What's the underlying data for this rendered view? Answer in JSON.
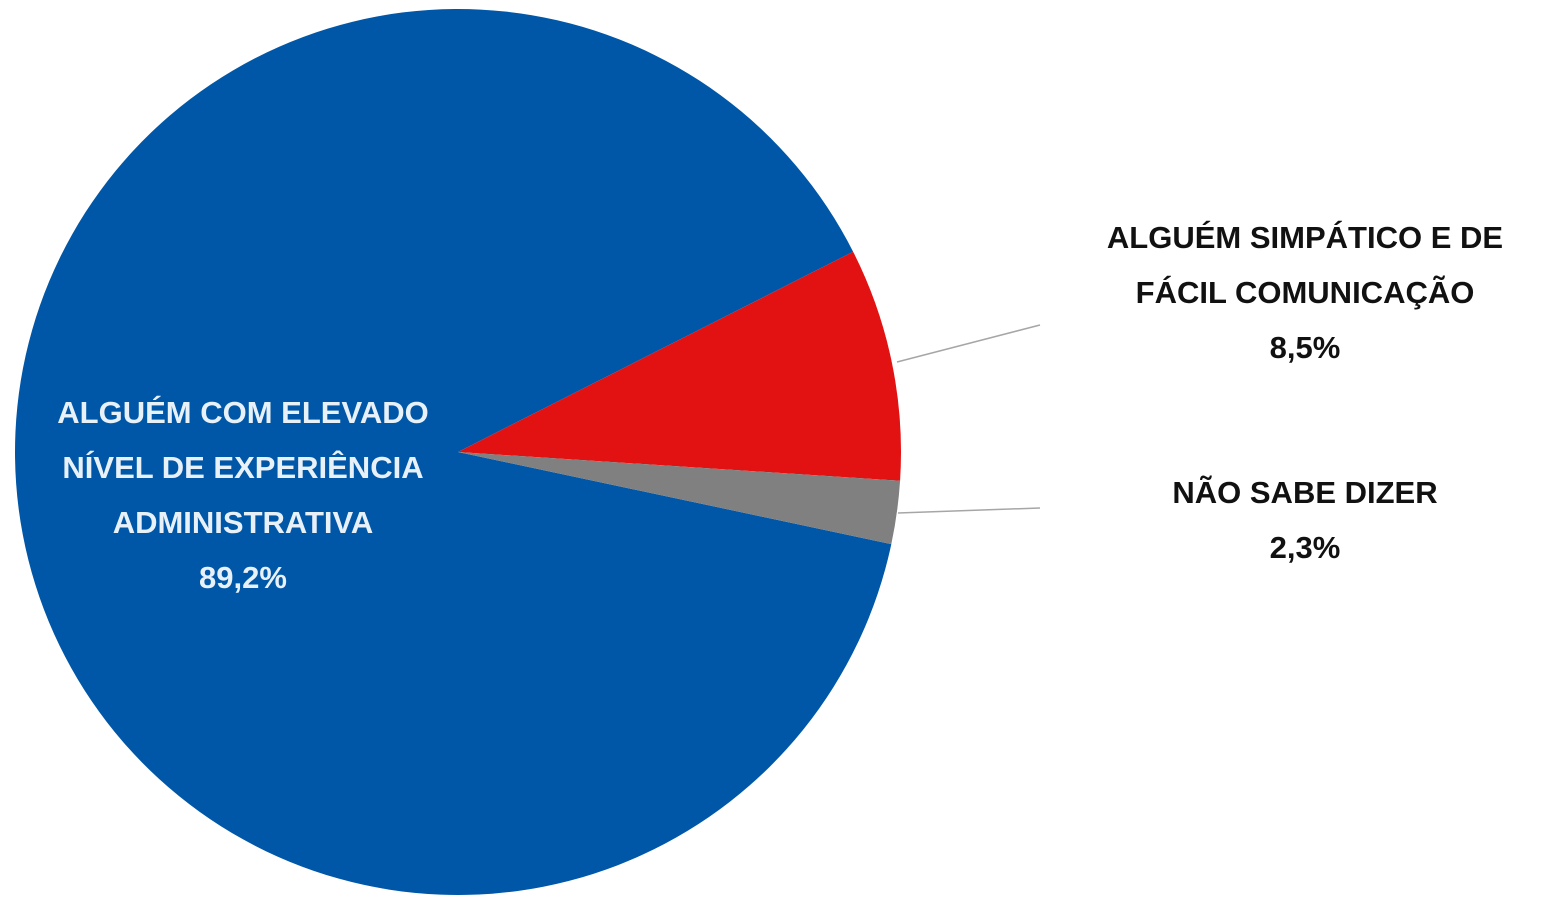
{
  "chart_data": {
    "type": "pie",
    "categories": [
      [
        "ALGUÉM COM ELEVADO",
        "NÍVEL DE EXPERIÊNCIA",
        "ADMINISTRATIVA"
      ],
      [
        "ALGUÉM SIMPÁTICO E DE",
        "FÁCIL COMUNICAÇÃO"
      ],
      [
        "NÃO SABE DIZER"
      ]
    ],
    "values": [
      89.2,
      8.5,
      2.3
    ],
    "value_labels": [
      "89,2%",
      "8,5%",
      "2,3%"
    ],
    "colors": [
      "#0057a8",
      "#e31212",
      "#808080"
    ]
  }
}
